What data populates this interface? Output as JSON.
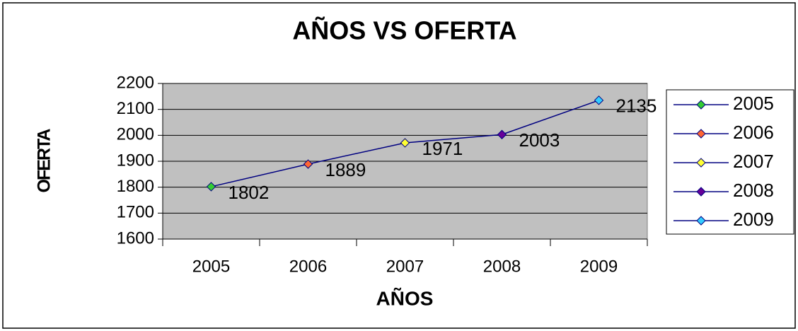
{
  "chart_data": {
    "type": "line",
    "title": "AÑOS VS OFERTA",
    "xlabel": "AÑOS",
    "ylabel": "OFERTA",
    "categories": [
      "2005",
      "2006",
      "2007",
      "2008",
      "2009"
    ],
    "values": [
      1802,
      1889,
      1971,
      2003,
      2135
    ],
    "color": "#000080",
    "point_colors": [
      "#33cc33",
      "#ff6633",
      "#ffff33",
      "#660099",
      "#33ccff"
    ],
    "ylim": [
      1600,
      2200
    ],
    "yticks": [
      1600,
      1700,
      1800,
      1900,
      2000,
      2100,
      2200
    ],
    "grid": true,
    "legend": "right"
  }
}
